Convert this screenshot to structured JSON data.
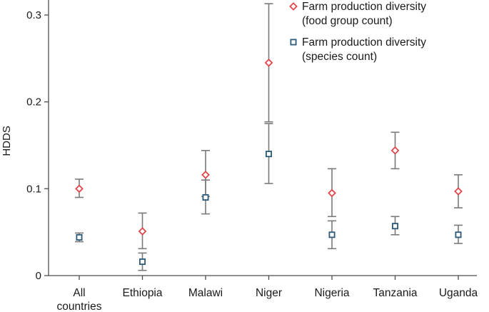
{
  "chart_data": {
    "type": "scatter",
    "title": "",
    "xlabel": "",
    "ylabel": "HDDS",
    "ylim": [
      0,
      0.32
    ],
    "yticks": [
      0,
      0.1,
      0.2,
      0.3
    ],
    "ytick_labels": [
      "0",
      "0.1",
      "0.2",
      "0.3"
    ],
    "categories": [
      {
        "line1": "All",
        "line2": "countries"
      },
      {
        "line1": "Ethiopia",
        "line2": ""
      },
      {
        "line1": "Malawi",
        "line2": ""
      },
      {
        "line1": "Niger",
        "line2": ""
      },
      {
        "line1": "Nigeria",
        "line2": ""
      },
      {
        "line1": "Tanzania",
        "line2": ""
      },
      {
        "line1": "Uganda",
        "line2": ""
      }
    ],
    "legend_position": "top-right",
    "series": [
      {
        "name": "Farm production diversity (food group count)",
        "legend_lines": [
          "Farm production diversity",
          "(food group count)"
        ],
        "marker": "diamond",
        "color": "#e0474c",
        "values": [
          0.1,
          0.051,
          0.116,
          0.245,
          0.095,
          0.144,
          0.097
        ],
        "lower": [
          0.09,
          0.031,
          0.091,
          0.177,
          0.068,
          0.123,
          0.078
        ],
        "upper": [
          0.111,
          0.072,
          0.144,
          0.313,
          0.123,
          0.165,
          0.116
        ]
      },
      {
        "name": "Farm production diversity (species count)",
        "legend_lines": [
          "Farm production diversity",
          "(species count)"
        ],
        "marker": "square",
        "color": "#2b5a7a",
        "values": [
          0.044,
          0.016,
          0.09,
          0.14,
          0.047,
          0.057,
          0.047
        ],
        "lower": [
          0.039,
          0.006,
          0.071,
          0.106,
          0.031,
          0.047,
          0.037
        ],
        "upper": [
          0.049,
          0.026,
          0.11,
          0.175,
          0.063,
          0.068,
          0.058
        ]
      }
    ],
    "colors": {
      "axis": "#4d4d4d",
      "errorbar": "#7a7a7a"
    }
  }
}
